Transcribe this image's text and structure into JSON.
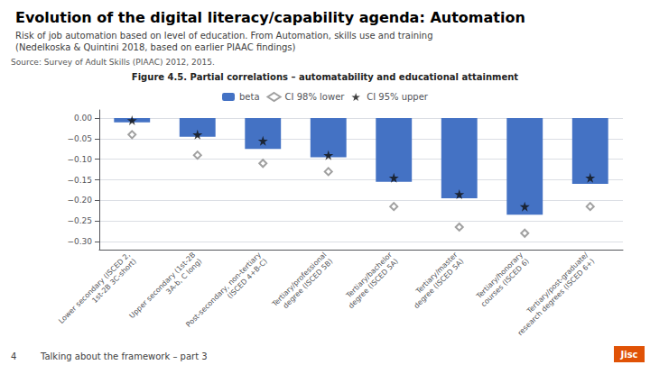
{
  "chart_data": {
    "type": "bar",
    "title": "Evolution of the digital literacy/capability agenda: Automation",
    "subtitle": "Risk of job automation based on level of education. From Automation, skills use and training\n(Nedelkoska & Quintini 2018, based on earlier PIAAC findings)",
    "annotations": [
      "Source: Survey of Adult Skills (PIAAC) 2012, 2015.",
      "Figure 4.5. Partial correlations – automatability and educational attainment",
      "4",
      "Talking about the framework – part 3",
      "Jisc"
    ],
    "categories": [
      "Lower secondary (ISCED 2,\n1st-2B 3C-short)",
      "Upper secondary (1st-2B\n3A-b, C long)",
      "Post-secondary, non-tertiary\n(ISCED 4+B-C)",
      "Tertiary/professional\ndegree (ISCED 5B)",
      "Tertiary/bachelor\ndegree (ISCED 5A)",
      "Tertiary/master\ndegree (ISCED 5A)",
      "Tertiary/honorary\ncourses (ISCED 6)",
      "Tertiary/post-graduate/\nresearch degrees (ISCED 6+)"
    ],
    "series": [
      {
        "name": "beta",
        "type": "bar",
        "color": "#4472c4",
        "values": [
          -0.01,
          -0.045,
          -0.075,
          -0.095,
          -0.155,
          -0.195,
          -0.235,
          -0.16
        ]
      },
      {
        "name": "CI 98% lower",
        "type": "scatter",
        "marker": "open_diamond",
        "color": "#888888",
        "values": [
          -0.04,
          -0.09,
          -0.11,
          -0.13,
          -0.215,
          -0.265,
          -0.28,
          -0.215
        ]
      },
      {
        "name": "CI 95% upper",
        "type": "scatter",
        "marker": "star",
        "color": "#111111",
        "values": [
          -0.005,
          -0.04,
          -0.055,
          -0.09,
          -0.145,
          -0.185,
          -0.215,
          -0.145
        ]
      }
    ],
    "ylim": [
      -0.32,
      0.02
    ],
    "yticks": [
      {
        "value": 0,
        "label": "0.00"
      },
      {
        "value": -0.05,
        "label": "−0.05"
      },
      {
        "value": -0.1,
        "label": "−0.10"
      },
      {
        "value": -0.15,
        "label": "−0.15"
      },
      {
        "value": -0.2,
        "label": "−0.20"
      },
      {
        "value": -0.25,
        "label": "−0.25"
      },
      {
        "value": -0.3,
        "label": "−0.30"
      }
    ],
    "grid": true,
    "legend": "top"
  }
}
